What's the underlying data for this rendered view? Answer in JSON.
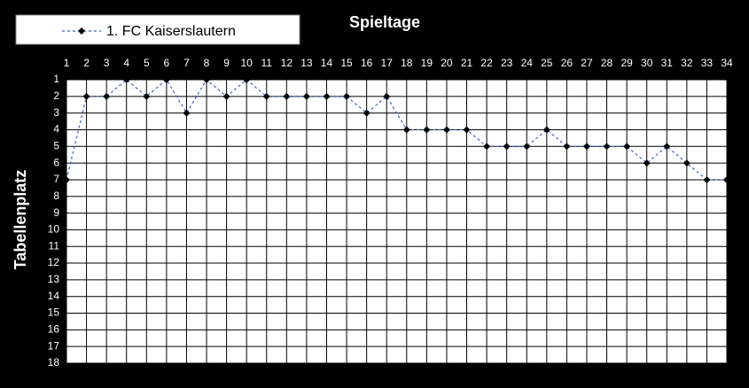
{
  "chart_data": {
    "type": "line",
    "x_label": "Spieltage",
    "y_label": "Tabellenplatz",
    "x": [
      1,
      2,
      3,
      4,
      5,
      6,
      7,
      8,
      9,
      10,
      11,
      12,
      13,
      14,
      15,
      16,
      17,
      18,
      19,
      20,
      21,
      22,
      23,
      24,
      25,
      26,
      27,
      28,
      29,
      30,
      31,
      32,
      33,
      34
    ],
    "series": [
      {
        "name": "1. FC Kaiserslautern",
        "color": "#3a5fd0",
        "marker_color": "#000000",
        "values": [
          7,
          2,
          2,
          1,
          2,
          1,
          3,
          1,
          2,
          1,
          2,
          2,
          2,
          2,
          2,
          3,
          2,
          4,
          4,
          4,
          4,
          5,
          5,
          5,
          4,
          5,
          5,
          5,
          5,
          6,
          5,
          6,
          7,
          7
        ]
      }
    ],
    "xlim": [
      1,
      34
    ],
    "xticks": [
      1,
      2,
      3,
      4,
      5,
      6,
      7,
      8,
      9,
      10,
      11,
      12,
      13,
      14,
      15,
      16,
      17,
      18,
      19,
      20,
      21,
      22,
      23,
      24,
      25,
      26,
      27,
      28,
      29,
      30,
      31,
      32,
      33,
      34
    ],
    "ylim": [
      1,
      18
    ],
    "y_inverted": true,
    "yticks": [
      1,
      2,
      3,
      4,
      5,
      6,
      7,
      8,
      9,
      10,
      11,
      12,
      13,
      14,
      15,
      16,
      17,
      18
    ],
    "grid": true,
    "legend": "top-left",
    "x_axis_position": "top"
  }
}
